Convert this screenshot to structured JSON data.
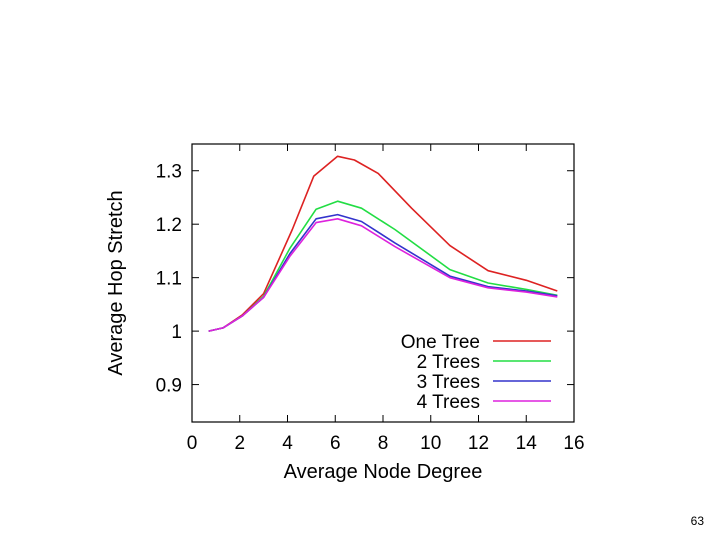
{
  "slide": {
    "page_number": "63"
  },
  "chart_data": {
    "type": "line",
    "title": "",
    "xlabel": "Average Node Degree",
    "ylabel": "Average Hop Stretch",
    "xlim": [
      0,
      16
    ],
    "ylim": [
      0.83,
      1.35
    ],
    "xticks": [
      0,
      2,
      4,
      6,
      8,
      10,
      12,
      14,
      16
    ],
    "xtick_labels": [
      "0",
      "2",
      "4",
      "6",
      "8",
      "10",
      "12",
      "14",
      "16"
    ],
    "yticks": [
      0.9,
      1.0,
      1.1,
      1.2,
      1.3
    ],
    "ytick_labels": [
      "0.9",
      "1",
      "1.1",
      "1.2",
      "1.3"
    ],
    "legend_position": "bottom-right",
    "series": [
      {
        "name": "One Tree",
        "color": "#dd2222",
        "points": [
          [
            0.7,
            1.0
          ],
          [
            1.3,
            1.006
          ],
          [
            2.1,
            1.03
          ],
          [
            3.0,
            1.07
          ],
          [
            4.2,
            1.19
          ],
          [
            5.1,
            1.29
          ],
          [
            6.1,
            1.327
          ],
          [
            6.8,
            1.32
          ],
          [
            7.8,
            1.295
          ],
          [
            9.2,
            1.23
          ],
          [
            10.8,
            1.16
          ],
          [
            12.4,
            1.113
          ],
          [
            14,
            1.095
          ],
          [
            15.3,
            1.075
          ]
        ]
      },
      {
        "name": "2 Trees",
        "color": "#22dd44",
        "points": [
          [
            0.7,
            1.0
          ],
          [
            1.3,
            1.006
          ],
          [
            2.1,
            1.028
          ],
          [
            3.0,
            1.065
          ],
          [
            4.1,
            1.155
          ],
          [
            5.2,
            1.228
          ],
          [
            6.1,
            1.243
          ],
          [
            7.1,
            1.23
          ],
          [
            8.5,
            1.19
          ],
          [
            10.8,
            1.115
          ],
          [
            12.4,
            1.09
          ],
          [
            14,
            1.078
          ],
          [
            15.3,
            1.067
          ]
        ]
      },
      {
        "name": "3 Trees",
        "color": "#3333cc",
        "points": [
          [
            0.7,
            1.0
          ],
          [
            1.3,
            1.006
          ],
          [
            2.1,
            1.028
          ],
          [
            3.0,
            1.063
          ],
          [
            4.1,
            1.145
          ],
          [
            5.2,
            1.21
          ],
          [
            6.1,
            1.218
          ],
          [
            7.1,
            1.205
          ],
          [
            8.5,
            1.165
          ],
          [
            10.8,
            1.103
          ],
          [
            12.4,
            1.083
          ],
          [
            14,
            1.075
          ],
          [
            15.3,
            1.066
          ]
        ]
      },
      {
        "name": "4 Trees",
        "color": "#dd22dd",
        "points": [
          [
            0.7,
            1.0
          ],
          [
            1.3,
            1.006
          ],
          [
            2.1,
            1.028
          ],
          [
            3.0,
            1.063
          ],
          [
            4.1,
            1.14
          ],
          [
            5.2,
            1.203
          ],
          [
            6.1,
            1.21
          ],
          [
            7.1,
            1.197
          ],
          [
            8.5,
            1.158
          ],
          [
            10.8,
            1.1
          ],
          [
            12.4,
            1.081
          ],
          [
            14,
            1.073
          ],
          [
            15.3,
            1.064
          ]
        ]
      }
    ]
  }
}
